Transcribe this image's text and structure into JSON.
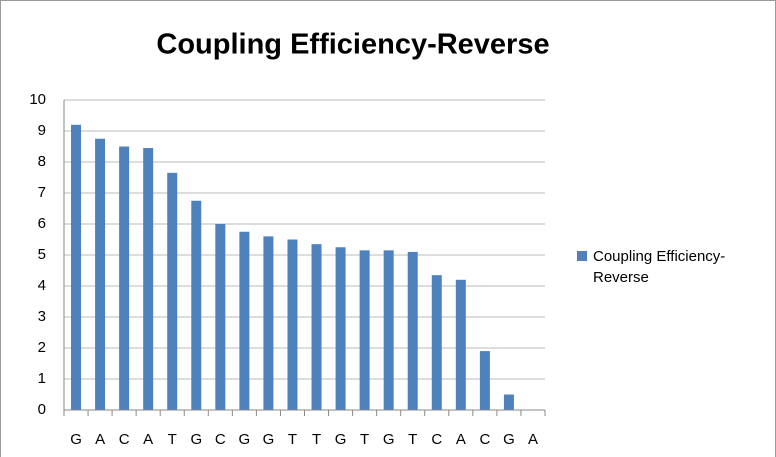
{
  "chart_data": {
    "type": "bar",
    "title": "Coupling Efficiency-Reverse",
    "categories": [
      "G",
      "A",
      "C",
      "A",
      "T",
      "G",
      "C",
      "G",
      "G",
      "T",
      "T",
      "G",
      "T",
      "G",
      "T",
      "C",
      "A",
      "C",
      "G",
      "A"
    ],
    "series": [
      {
        "name": "Coupling Efficiency-Reverse",
        "color": "#4f81bd",
        "values": [
          9.2,
          8.75,
          8.5,
          8.45,
          7.65,
          6.75,
          6.0,
          5.75,
          5.6,
          5.5,
          5.35,
          5.25,
          5.15,
          5.15,
          5.1,
          4.35,
          4.2,
          1.9,
          0.5,
          0
        ]
      }
    ],
    "ylim": [
      0,
      10
    ],
    "yticks": [
      0,
      1,
      2,
      3,
      4,
      5,
      6,
      7,
      8,
      9,
      10
    ],
    "grid": true,
    "legend": "right"
  }
}
